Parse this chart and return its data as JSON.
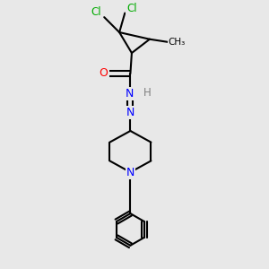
{
  "background_color": "#e8e8e8",
  "atom_colors": {
    "C": "#000000",
    "N": "#0000ff",
    "O": "#ff0000",
    "Cl": "#00aa00",
    "H": "#808080"
  },
  "bond_color": "#000000",
  "bond_width": 1.5,
  "figsize": [
    3.0,
    3.0
  ],
  "dpi": 100
}
